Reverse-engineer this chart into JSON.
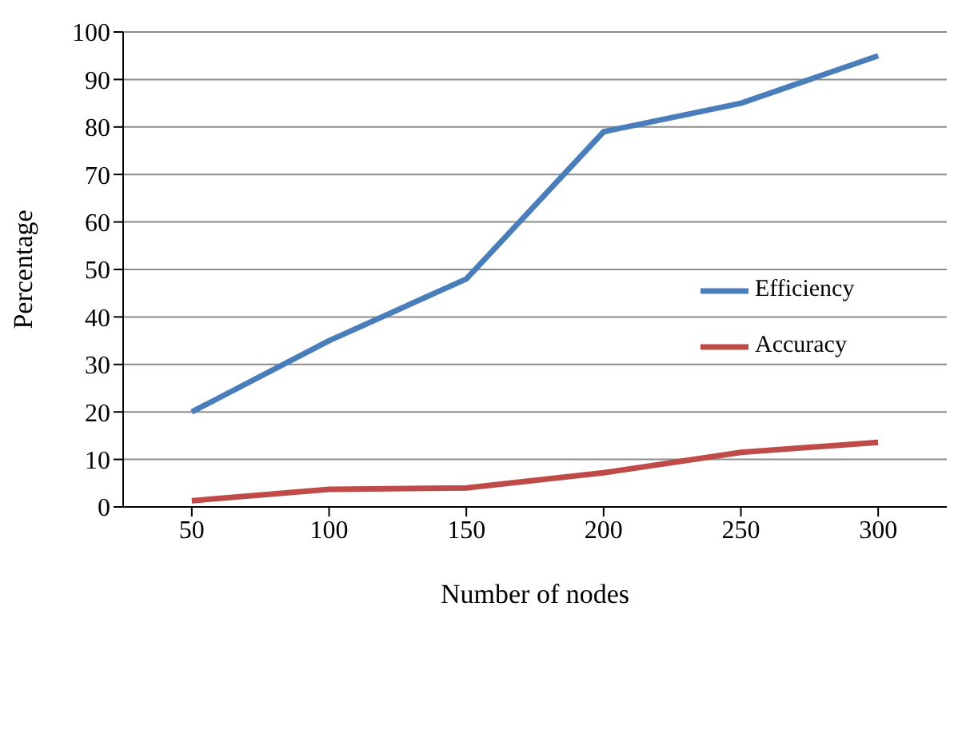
{
  "chart_data": {
    "type": "line",
    "xlabel": "Number of nodes",
    "ylabel": "Percentage",
    "categories": [
      "50",
      "100",
      "150",
      "200",
      "250",
      "300"
    ],
    "series": [
      {
        "name": "Efficiency",
        "color": "#4a7ebb",
        "values": [
          20,
          35,
          48,
          79,
          85,
          95
        ]
      },
      {
        "name": "Accuracy",
        "color": "#be4b48",
        "values": [
          1.3,
          3.7,
          4,
          7.2,
          11.5,
          13.6
        ]
      }
    ],
    "ylim": [
      0,
      100
    ],
    "yticks": [
      0,
      10,
      20,
      30,
      40,
      50,
      60,
      70,
      80,
      90,
      100
    ],
    "grid": "y",
    "legend": "right",
    "marker": "none",
    "line_style": "solid"
  }
}
